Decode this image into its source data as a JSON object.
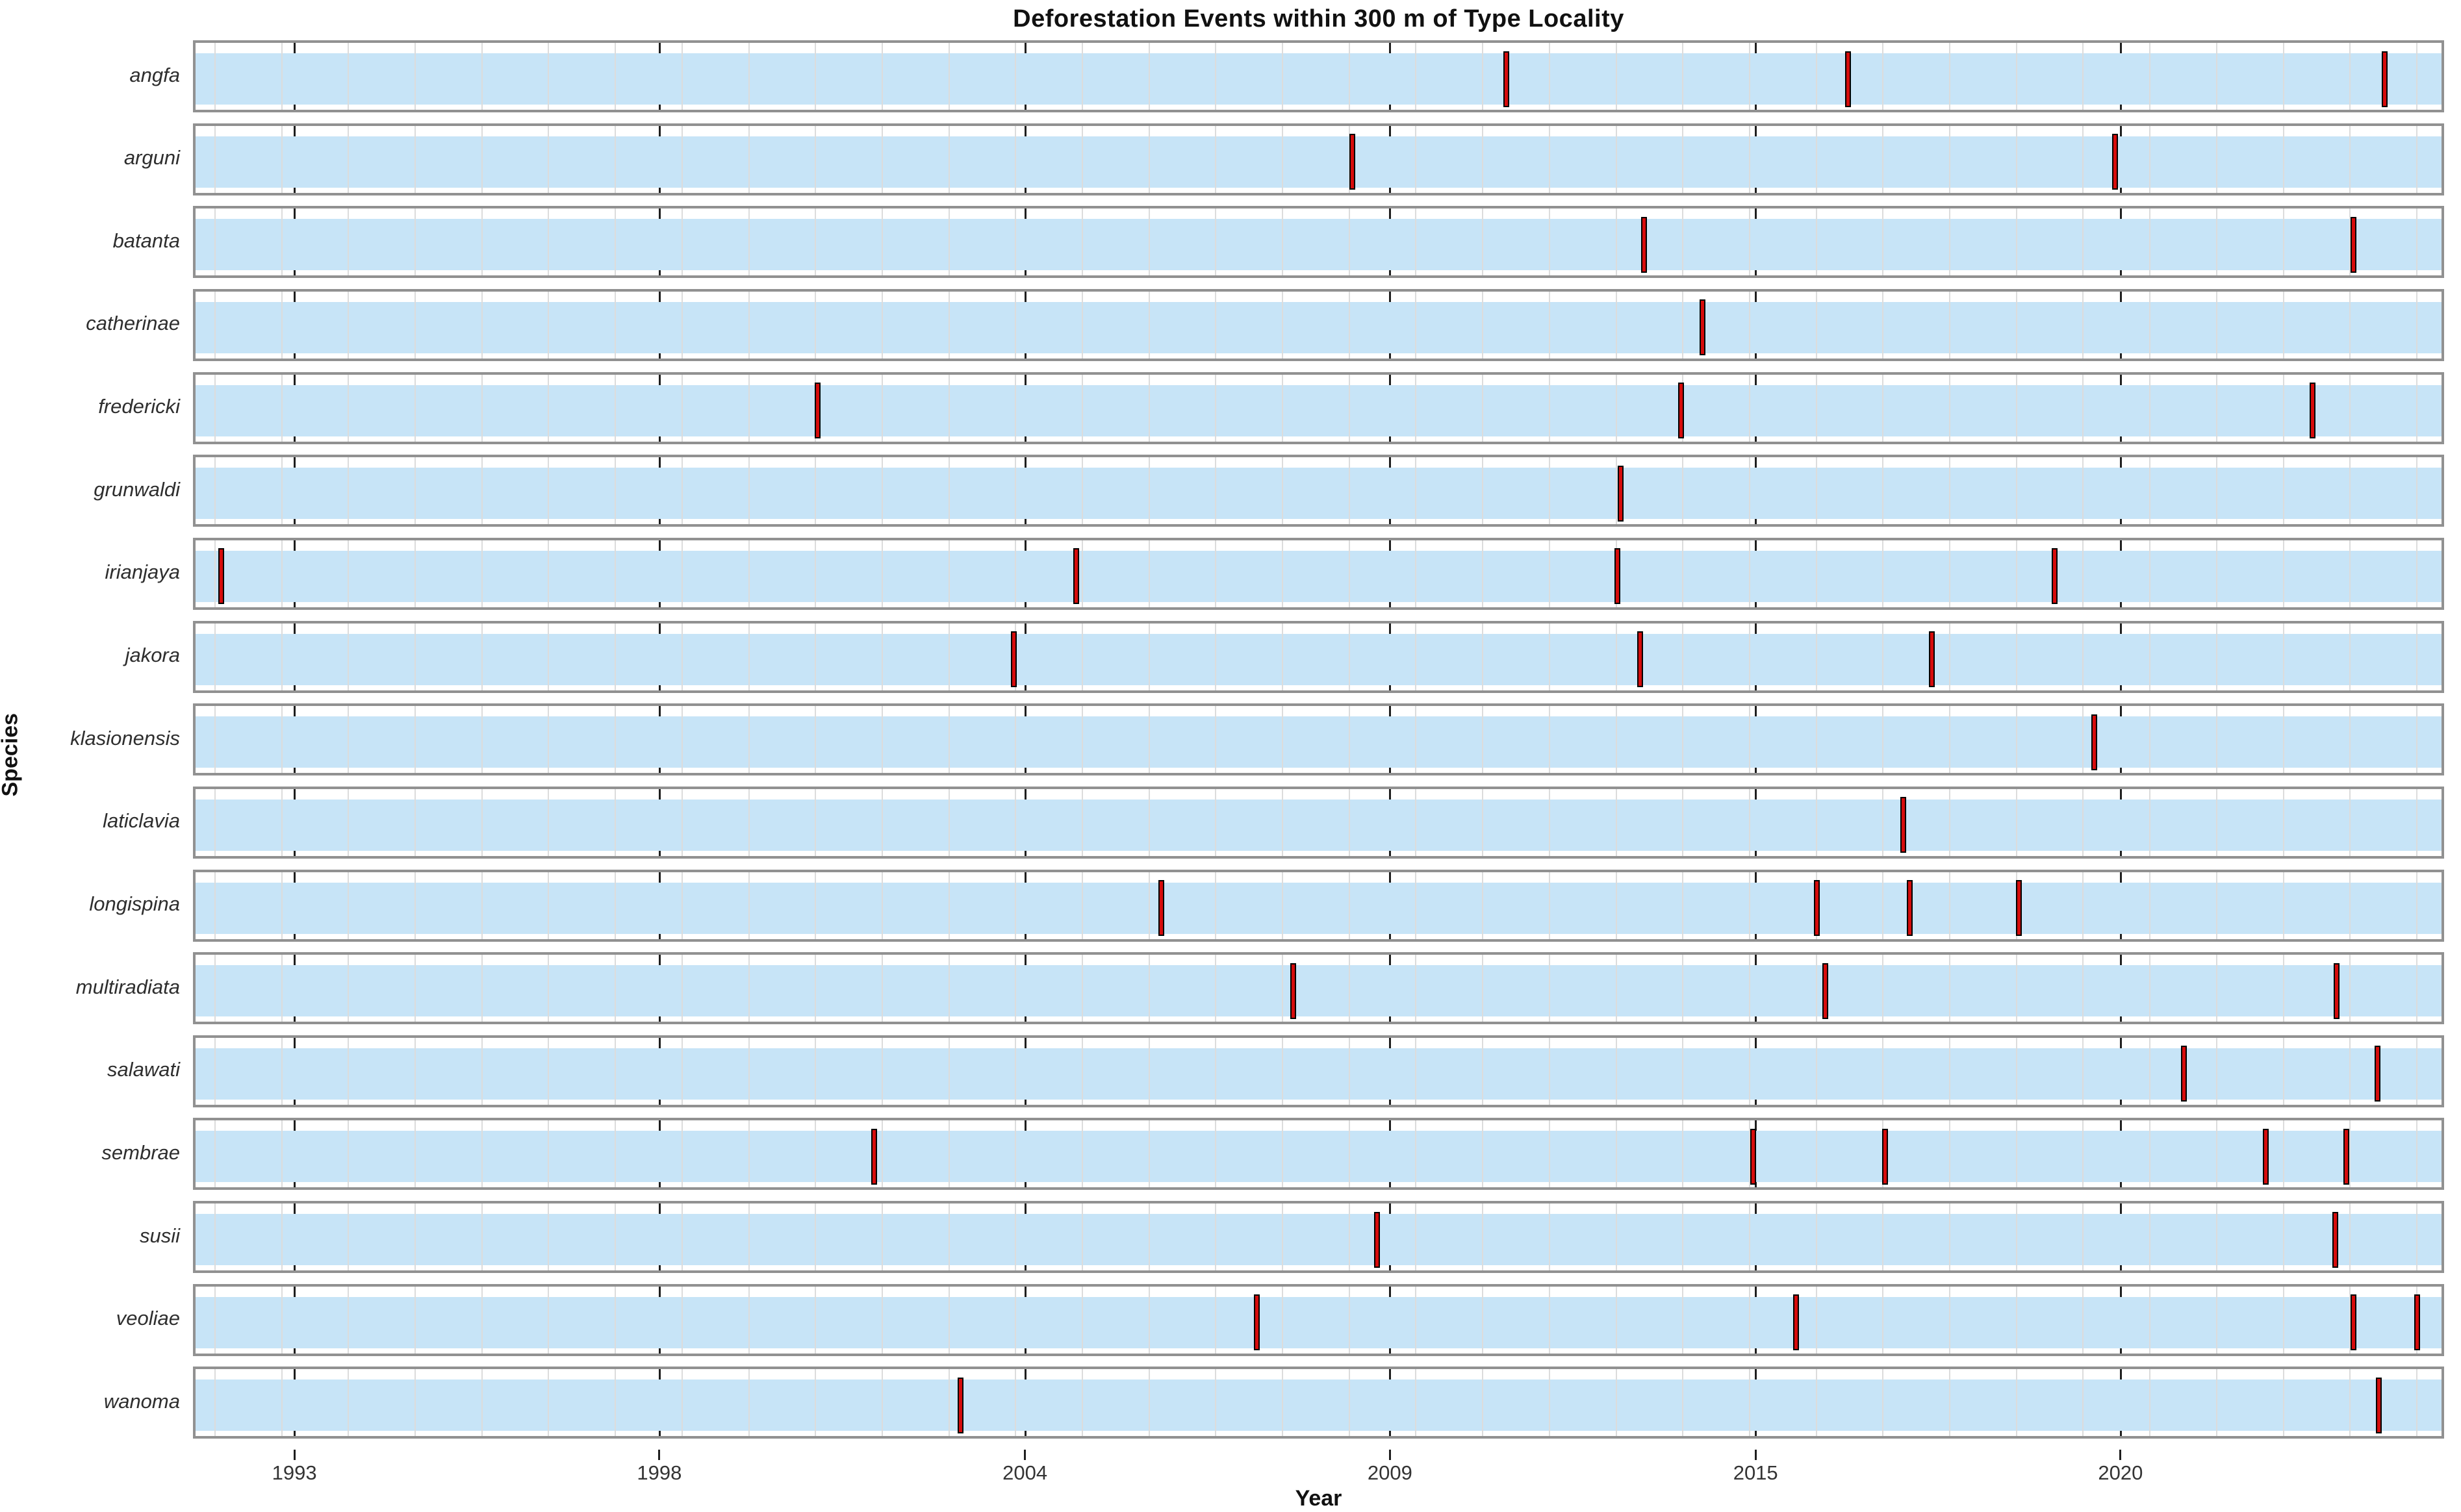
{
  "title": "Deforestation Events within 300 m of Type Locality",
  "axes": {
    "xlabel": "Year",
    "ylabel": "Species"
  },
  "colors": {
    "band": "#c7e4f7",
    "gridline": "#dcdcdc",
    "panel_border": "#919191",
    "axis_tick": "#1f1f1f",
    "event_fill": "#d60c0c",
    "event_stroke": "#000000",
    "text": "#111111",
    "species_label": "#2e2e2e"
  },
  "chart_data": {
    "type": "scatter",
    "subtype": "event-timeline-small-multiples",
    "title": "Deforestation Events within 300 m of Type Locality",
    "xlabel": "Year",
    "ylabel": "Species",
    "x_domain": [
      1991.67,
      2025.41
    ],
    "grid": "on",
    "x_ticks": [
      {
        "pos": 1993.19,
        "label": "1993"
      },
      {
        "pos": 1998.66,
        "label": "1998"
      },
      {
        "pos": 2004.14,
        "label": "2004"
      },
      {
        "pos": 2009.61,
        "label": "2009"
      },
      {
        "pos": 2015.09,
        "label": "2015"
      },
      {
        "pos": 2020.56,
        "label": "2020"
      }
    ],
    "series": [
      {
        "species": "angfa",
        "events": [
          2011.36,
          2016.49,
          2024.53
        ]
      },
      {
        "species": "arguni",
        "events": [
          2009.06,
          2020.49
        ]
      },
      {
        "species": "batanta",
        "events": [
          2013.43,
          2024.06
        ]
      },
      {
        "species": "catherinae",
        "events": [
          2014.3
        ]
      },
      {
        "species": "fredericki",
        "events": [
          2001.04,
          2013.98,
          2023.45
        ]
      },
      {
        "species": "grunwaldi",
        "events": [
          2013.08
        ]
      },
      {
        "species": "irianjaya",
        "events": [
          1992.1,
          2004.92,
          2013.03,
          2019.58
        ]
      },
      {
        "species": "jakora",
        "events": [
          2003.98,
          2013.37,
          2017.74
        ]
      },
      {
        "species": "klasionensis",
        "events": [
          2020.18
        ]
      },
      {
        "species": "laticlavia",
        "events": [
          2017.31
        ]
      },
      {
        "species": "longispina",
        "events": [
          2006.19,
          2016.02,
          2017.41,
          2019.05
        ]
      },
      {
        "species": "multiradiata",
        "events": [
          2008.17,
          2016.14,
          2023.81
        ]
      },
      {
        "species": "salawati",
        "events": [
          2021.52,
          2024.42
        ]
      },
      {
        "species": "sembrae",
        "events": [
          2001.89,
          2015.06,
          2017.04,
          2022.75,
          2023.95
        ]
      },
      {
        "species": "susii",
        "events": [
          2009.43,
          2023.79
        ]
      },
      {
        "species": "veoliae",
        "events": [
          2007.62,
          2015.71,
          2024.06,
          2025.02
        ]
      },
      {
        "species": "wanoma",
        "events": [
          2003.18,
          2024.44
        ]
      }
    ]
  }
}
